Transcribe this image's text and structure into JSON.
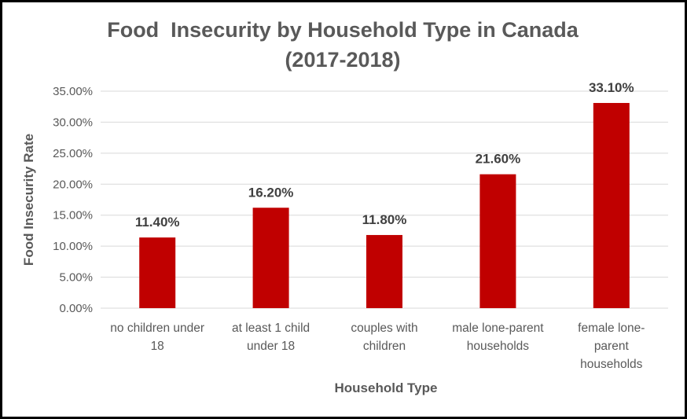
{
  "chart_data": {
    "type": "bar",
    "title_lines": [
      "Food  Insecurity by Household Type in Canada",
      "(2017-2018)"
    ],
    "xlabel": "Household Type",
    "ylabel": "Food Insecurity Rate",
    "categories": [
      [
        "no children under",
        "18"
      ],
      [
        "at least 1 child",
        "under 18"
      ],
      [
        "couples with",
        "children"
      ],
      [
        "male lone-parent",
        "households"
      ],
      [
        "female lone-",
        "parent",
        "households"
      ]
    ],
    "values": [
      11.4,
      16.2,
      11.8,
      21.6,
      33.1
    ],
    "data_labels": [
      "11.40%",
      "16.20%",
      "11.80%",
      "21.60%",
      "33.10%"
    ],
    "yticks": [
      0,
      5,
      10,
      15,
      20,
      25,
      30,
      35
    ],
    "ytick_labels": [
      "0.00%",
      "5.00%",
      "10.00%",
      "15.00%",
      "20.00%",
      "25.00%",
      "30.00%",
      "35.00%"
    ],
    "ylim": [
      0,
      35
    ],
    "grid": true,
    "legend": "none",
    "bar_color": "#C00000",
    "grid_color": "#D9D9D9"
  }
}
